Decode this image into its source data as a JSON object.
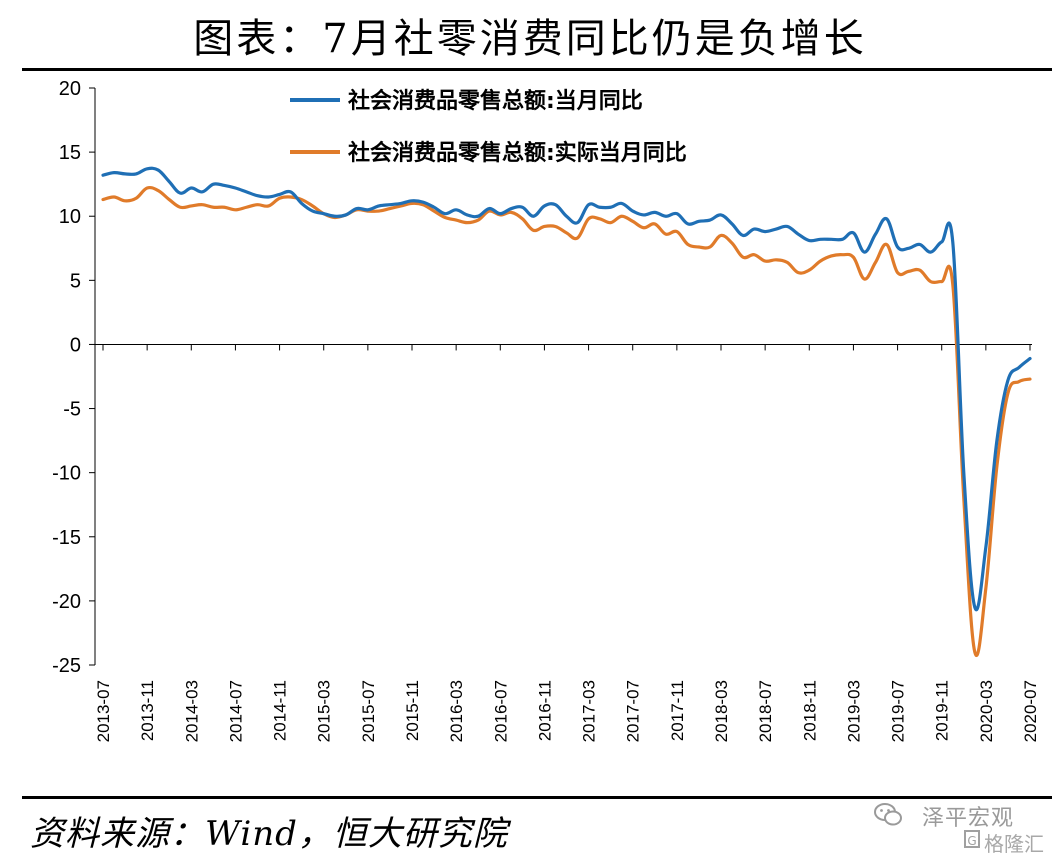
{
  "title": "图表：7月社零消费同比仍是负增长",
  "source": "资料来源：Wind，恒大研究院",
  "watermark": {
    "line1": "泽平宏观",
    "line2": "格隆汇",
    "line2_icon": "G"
  },
  "chart_data": {
    "type": "line",
    "ylim": [
      -25,
      20
    ],
    "yticks": [
      20,
      15,
      10,
      5,
      0,
      -5,
      -10,
      -15,
      -20,
      -25
    ],
    "xticks": [
      "2013-07",
      "2013-11",
      "2014-03",
      "2014-07",
      "2014-11",
      "2015-03",
      "2015-07",
      "2015-11",
      "2016-03",
      "2016-07",
      "2016-11",
      "2017-03",
      "2017-07",
      "2017-11",
      "2018-03",
      "2018-07",
      "2018-11",
      "2019-03",
      "2019-07",
      "2019-11",
      "2020-03",
      "2020-07"
    ],
    "grid": false,
    "legend_position": "top",
    "x": [
      "2013-07",
      "2013-08",
      "2013-09",
      "2013-10",
      "2013-11",
      "2013-12",
      "2014-01",
      "2014-02",
      "2014-03",
      "2014-04",
      "2014-05",
      "2014-06",
      "2014-07",
      "2014-08",
      "2014-09",
      "2014-10",
      "2014-11",
      "2014-12",
      "2015-01",
      "2015-02",
      "2015-03",
      "2015-04",
      "2015-05",
      "2015-06",
      "2015-07",
      "2015-08",
      "2015-09",
      "2015-10",
      "2015-11",
      "2015-12",
      "2016-01",
      "2016-02",
      "2016-03",
      "2016-04",
      "2016-05",
      "2016-06",
      "2016-07",
      "2016-08",
      "2016-09",
      "2016-10",
      "2016-11",
      "2016-12",
      "2017-01",
      "2017-02",
      "2017-03",
      "2017-04",
      "2017-05",
      "2017-06",
      "2017-07",
      "2017-08",
      "2017-09",
      "2017-10",
      "2017-11",
      "2017-12",
      "2018-01",
      "2018-02",
      "2018-03",
      "2018-04",
      "2018-05",
      "2018-06",
      "2018-07",
      "2018-08",
      "2018-09",
      "2018-10",
      "2018-11",
      "2018-12",
      "2019-01",
      "2019-02",
      "2019-03",
      "2019-04",
      "2019-05",
      "2019-06",
      "2019-07",
      "2019-08",
      "2019-09",
      "2019-10",
      "2019-11",
      "2019-12",
      "2020-01",
      "2020-02",
      "2020-03",
      "2020-04",
      "2020-05",
      "2020-06",
      "2020-07"
    ],
    "series": [
      {
        "name": "社会消费品零售总额:当月同比",
        "color": "#1f6fb5",
        "values": [
          13.2,
          13.4,
          13.3,
          13.3,
          13.7,
          13.6,
          12.7,
          11.8,
          12.2,
          11.9,
          12.5,
          12.4,
          12.2,
          11.9,
          11.6,
          11.5,
          11.7,
          11.9,
          11.0,
          10.4,
          10.2,
          10.0,
          10.1,
          10.6,
          10.5,
          10.8,
          10.9,
          11.0,
          11.2,
          11.1,
          10.7,
          10.2,
          10.5,
          10.1,
          10.0,
          10.6,
          10.2,
          10.6,
          10.7,
          10.0,
          10.8,
          10.9,
          10.0,
          9.5,
          10.9,
          10.7,
          10.7,
          11.0,
          10.4,
          10.1,
          10.3,
          10.0,
          10.2,
          9.4,
          9.6,
          9.7,
          10.1,
          9.4,
          8.5,
          9.0,
          8.8,
          9.0,
          9.2,
          8.6,
          8.1,
          8.2,
          8.2,
          8.2,
          8.7,
          7.2,
          8.6,
          9.8,
          7.6,
          7.5,
          7.8,
          7.2,
          8.0,
          8.0,
          -10.0,
          -20.5,
          -15.8,
          -7.5,
          -2.8,
          -1.8,
          -1.1
        ]
      },
      {
        "name": "社会消费品零售总额:实际当月同比",
        "color": "#e07b2a",
        "values": [
          11.3,
          11.5,
          11.2,
          11.4,
          12.2,
          12.0,
          11.3,
          10.7,
          10.8,
          10.9,
          10.7,
          10.7,
          10.5,
          10.7,
          10.9,
          10.8,
          11.4,
          11.5,
          11.3,
          10.8,
          10.2,
          9.9,
          10.1,
          10.5,
          10.4,
          10.4,
          10.6,
          10.8,
          11.0,
          10.9,
          10.4,
          9.9,
          9.7,
          9.5,
          9.7,
          10.4,
          10.1,
          10.3,
          9.8,
          8.9,
          9.2,
          9.2,
          8.7,
          8.3,
          9.8,
          9.8,
          9.5,
          10.0,
          9.6,
          9.1,
          9.4,
          8.6,
          8.8,
          7.8,
          7.6,
          7.6,
          8.5,
          7.9,
          6.8,
          7.0,
          6.5,
          6.6,
          6.4,
          5.6,
          5.8,
          6.5,
          6.9,
          7.0,
          6.8,
          5.1,
          6.4,
          7.8,
          5.6,
          5.7,
          5.8,
          4.9,
          4.9,
          4.7,
          -12.0,
          -24.0,
          -19.0,
          -9.5,
          -3.8,
          -2.9,
          -2.7
        ]
      }
    ]
  }
}
